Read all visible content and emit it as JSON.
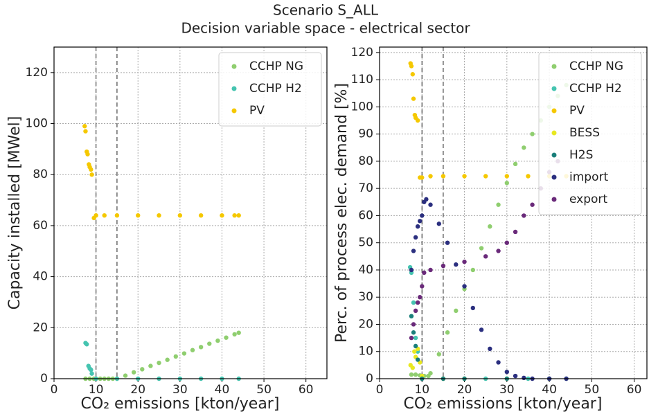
{
  "title": "Scenario S_ALL",
  "subtitle": "Decision variable space - electrical sector",
  "chart_data": [
    {
      "type": "scatter",
      "xlabel": "CO₂  emissions [kton/year]",
      "ylabel": "Capacity installed  [MWel]",
      "xlim": [
        0,
        65
      ],
      "xticks": [
        0,
        10,
        20,
        30,
        40,
        50,
        60
      ],
      "ylim": [
        0,
        130
      ],
      "yticks": [
        0,
        20,
        40,
        60,
        80,
        100,
        120
      ],
      "grid": true,
      "legend": "upper right",
      "vlines": [
        10,
        15
      ],
      "series": [
        {
          "name": "CCHP NG",
          "color": "#8fce6f",
          "x": [
            7.5,
            8.5,
            9.5,
            10,
            11,
            12,
            13,
            14,
            15,
            17,
            19,
            21,
            23,
            25,
            27,
            29,
            31,
            33,
            35,
            37,
            39,
            41,
            43,
            44
          ],
          "values": [
            0,
            0,
            0,
            0,
            0,
            0,
            0,
            0,
            0,
            1.2,
            2.5,
            3.7,
            5.0,
            6.2,
            7.4,
            8.7,
            9.9,
            11.2,
            12.4,
            13.7,
            14.9,
            16.1,
            17.4,
            18
          ]
        },
        {
          "name": "CCHP H2",
          "color": "#45c4b0",
          "x": [
            7.5,
            7.8,
            8.2,
            8.5,
            8.8,
            9.0,
            10,
            15,
            20,
            25,
            30,
            35,
            40,
            44
          ],
          "values": [
            14,
            13.5,
            5,
            4,
            3.5,
            2,
            0,
            0,
            0,
            0,
            0,
            0,
            0,
            0
          ]
        },
        {
          "name": "PV",
          "color": "#f5c800",
          "x": [
            7.3,
            7.5,
            7.8,
            8.0,
            8.3,
            8.5,
            8.8,
            9.0,
            9.5,
            10,
            12,
            15,
            20,
            25,
            30,
            35,
            40,
            43,
            44
          ],
          "values": [
            99,
            97,
            89,
            88,
            84,
            83,
            82,
            80,
            63,
            64,
            64,
            64,
            64,
            64,
            64,
            64,
            64,
            64,
            64
          ]
        }
      ]
    },
    {
      "type": "scatter",
      "xlabel": "CO₂  emissions [kton/year]",
      "ylabel": "Perc. of process elec. demand [%]",
      "xlim": [
        0,
        63
      ],
      "xticks": [
        0,
        10,
        20,
        30,
        40,
        50,
        60
      ],
      "ylim": [
        0,
        122
      ],
      "yticks": [
        0,
        10,
        20,
        30,
        40,
        50,
        60,
        70,
        80,
        90,
        100,
        110,
        120
      ],
      "grid": true,
      "legend": "upper right",
      "vlines": [
        10,
        15
      ],
      "series": [
        {
          "name": "CCHP NG",
          "color": "#8fce6f",
          "x": [
            7.5,
            8.5,
            9.5,
            10.5,
            11.5,
            12,
            14,
            16,
            18,
            20,
            22,
            24,
            26,
            28,
            30,
            32,
            34,
            36,
            38,
            40,
            42,
            44
          ],
          "values": [
            1.5,
            1.5,
            1.2,
            1,
            1,
            2,
            9,
            17,
            25,
            33,
            40,
            48,
            56,
            64,
            72,
            79,
            85,
            90,
            95,
            100,
            104,
            108
          ]
        },
        {
          "name": "CCHP H2",
          "color": "#45c4b0",
          "x": [
            7.2,
            7.5,
            8.0,
            8.5,
            9.0,
            10,
            15,
            20,
            25,
            30,
            35,
            40,
            44
          ],
          "values": [
            41,
            39,
            28,
            15,
            10,
            0,
            0,
            0,
            0,
            0,
            0,
            0,
            0
          ]
        },
        {
          "name": "PV",
          "color": "#f5c800",
          "x": [
            7.3,
            7.5,
            7.8,
            8.0,
            8.3,
            8.5,
            9,
            9.5,
            10,
            12,
            15,
            20,
            25,
            30,
            35,
            40,
            44
          ],
          "values": [
            116,
            115,
            112,
            103,
            97,
            96,
            95,
            74,
            74,
            74.5,
            74.5,
            74.5,
            74.5,
            74.5,
            74.5,
            74.5,
            74.5
          ]
        },
        {
          "name": "BESS",
          "color": "#e8e820",
          "x": [
            7.3,
            7.8,
            8.2,
            8.5,
            9,
            9.5,
            10,
            15,
            20,
            30,
            40
          ],
          "values": [
            5,
            4,
            10,
            8,
            11,
            6,
            1,
            0,
            0,
            0,
            0
          ]
        },
        {
          "name": "H2S",
          "color": "#1a7f7a",
          "x": [
            7.5,
            8,
            8.5,
            9,
            10,
            15,
            20,
            30,
            40
          ],
          "values": [
            23,
            17,
            12,
            7,
            0,
            0,
            0,
            0,
            0
          ]
        },
        {
          "name": "import",
          "color": "#2b2f7f",
          "x": [
            7.5,
            8,
            8.5,
            9,
            9.5,
            10,
            10.5,
            11,
            12,
            14,
            16,
            18,
            20,
            22,
            24,
            26,
            28,
            30,
            32,
            34,
            36,
            40,
            44
          ],
          "values": [
            40,
            47,
            52,
            56,
            58,
            60,
            65,
            66,
            64,
            57,
            50,
            42,
            34,
            26,
            18,
            11,
            6,
            2.5,
            1,
            0.3,
            0,
            0,
            0
          ]
        },
        {
          "name": "export",
          "color": "#6a2a7a",
          "x": [
            7.5,
            8,
            8.5,
            9,
            9.5,
            10,
            10.5,
            12,
            15,
            20,
            25,
            28,
            30,
            32,
            34,
            36,
            38,
            40,
            42
          ],
          "values": [
            15,
            20,
            25,
            28,
            30,
            34,
            39,
            40,
            41.5,
            43,
            45,
            47,
            50,
            54,
            60,
            64,
            70,
            76,
            80
          ]
        }
      ]
    }
  ]
}
